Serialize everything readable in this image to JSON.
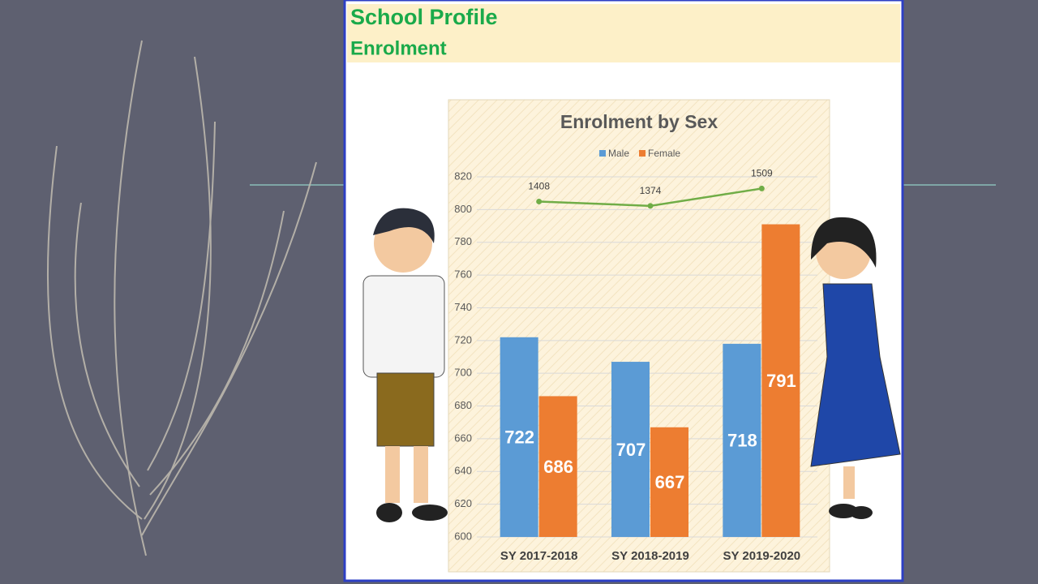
{
  "header": {
    "title": "School Profile",
    "subtitle": "Enrolment"
  },
  "chart_data": {
    "type": "bar",
    "title": "Enrolment by Sex",
    "categories": [
      "SY 2017-2018",
      "SY 2018-2019",
      "SY 2019-2020"
    ],
    "series": [
      {
        "name": "Male",
        "color": "#5b9bd5",
        "values": [
          722,
          707,
          718
        ]
      },
      {
        "name": "Female",
        "color": "#ed7d31",
        "values": [
          686,
          667,
          791
        ]
      },
      {
        "type": "line",
        "color": "#70ad47",
        "values": [
          1408,
          1374,
          1509
        ],
        "axis": "y2"
      }
    ],
    "ylim": [
      600,
      820
    ],
    "yticks": [
      600,
      620,
      640,
      660,
      680,
      700,
      720,
      740,
      760,
      780,
      800,
      820
    ],
    "y2lim": [
      -1200,
      1600
    ],
    "grid": true,
    "legend": "top"
  }
}
